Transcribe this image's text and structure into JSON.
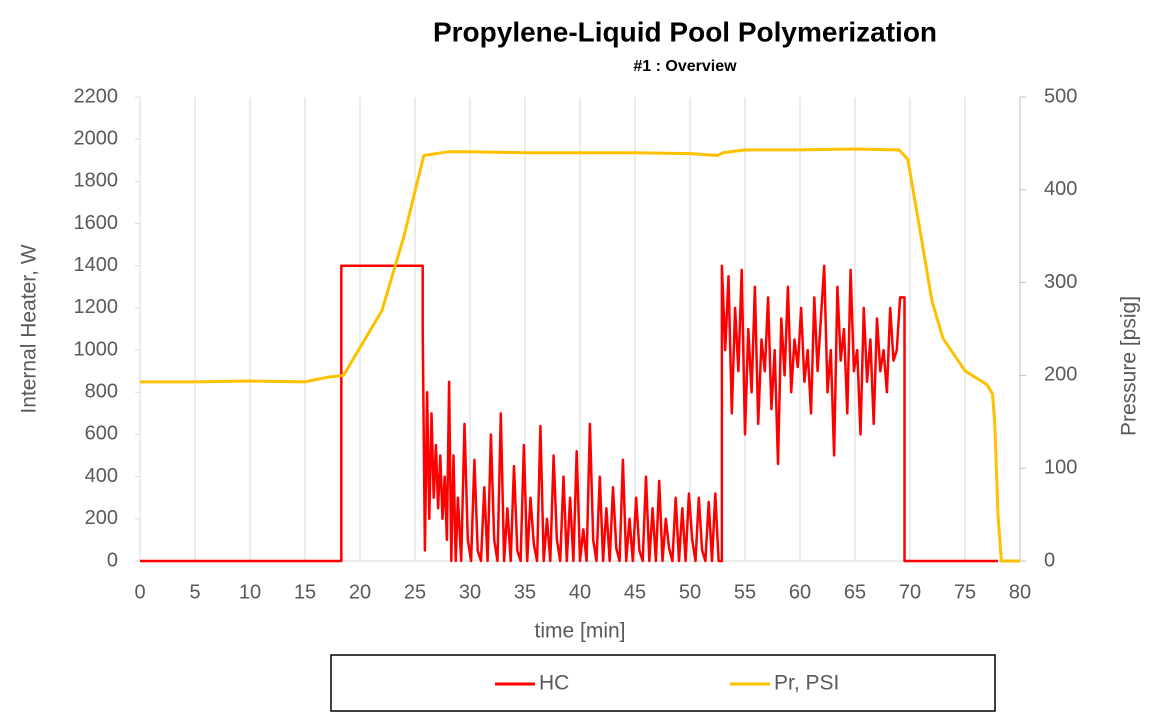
{
  "chart_data": {
    "type": "line",
    "title": "Propylene-Liquid Pool Polymerization",
    "subtitle": "#1 :  Overview",
    "x_label": "time [min]",
    "y_label": "Internal Heater, W",
    "y2_label": "Pressure [psig]",
    "xlim": [
      0,
      80
    ],
    "xticks": [
      0,
      5,
      10,
      15,
      20,
      25,
      30,
      35,
      40,
      45,
      50,
      55,
      60,
      65,
      70,
      75,
      80
    ],
    "ylim": [
      0,
      2200
    ],
    "yticks": [
      0,
      200,
      400,
      600,
      800,
      1000,
      1200,
      1400,
      1600,
      1800,
      2000,
      2200
    ],
    "y2lim": [
      0,
      500
    ],
    "y2ticks": [
      0,
      100,
      200,
      300,
      400,
      500
    ],
    "grid": "x",
    "legend": "bottom",
    "series": [
      {
        "name": "HC",
        "color": "#ff0000",
        "x": [
          0,
          18.3,
          18.3,
          25.7,
          25.7,
          25.9,
          26.1,
          26.3,
          26.5,
          26.7,
          26.9,
          27.1,
          27.3,
          27.5,
          27.7,
          27.9,
          28.1,
          28.3,
          28.5,
          28.7,
          28.9,
          29.2,
          29.5,
          29.8,
          30.1,
          30.4,
          30.7,
          31,
          31.3,
          31.6,
          31.9,
          32.2,
          32.5,
          32.8,
          33.1,
          33.4,
          33.7,
          34,
          34.3,
          34.6,
          34.9,
          35.2,
          35.5,
          35.8,
          36.1,
          36.4,
          36.7,
          37,
          37.3,
          37.6,
          37.9,
          38.2,
          38.5,
          38.8,
          39.1,
          39.4,
          39.7,
          40,
          40.3,
          40.6,
          40.9,
          41.2,
          41.5,
          41.8,
          42.1,
          42.4,
          42.7,
          43,
          43.3,
          43.6,
          43.9,
          44.2,
          44.5,
          44.8,
          45.1,
          45.4,
          45.7,
          46,
          46.3,
          46.6,
          46.9,
          47.2,
          47.5,
          47.8,
          48.1,
          48.4,
          48.7,
          49,
          49.3,
          49.6,
          49.9,
          50.2,
          50.5,
          50.8,
          51.1,
          51.4,
          51.7,
          52,
          52.3,
          52.6,
          52.9,
          52.9,
          53.2,
          53.5,
          53.8,
          54.1,
          54.4,
          54.7,
          55,
          55.3,
          55.6,
          55.9,
          56.2,
          56.5,
          56.8,
          57.1,
          57.4,
          57.7,
          58,
          58.3,
          58.6,
          58.9,
          59.2,
          59.5,
          59.8,
          60.1,
          60.4,
          60.7,
          61,
          61.3,
          61.6,
          61.9,
          62.2,
          62.5,
          62.8,
          63.1,
          63.4,
          63.7,
          64,
          64.3,
          64.6,
          64.9,
          65.2,
          65.5,
          65.8,
          66.1,
          66.4,
          66.7,
          67,
          67.3,
          67.6,
          67.9,
          68.2,
          68.5,
          68.8,
          69.1,
          69.5,
          69.5,
          78
        ],
        "values": [
          0,
          0,
          1400,
          1400,
          1100,
          50,
          800,
          200,
          700,
          300,
          550,
          250,
          500,
          200,
          400,
          100,
          850,
          0,
          500,
          0,
          300,
          0,
          650,
          100,
          0,
          480,
          50,
          0,
          350,
          0,
          600,
          100,
          0,
          700,
          0,
          250,
          0,
          450,
          50,
          0,
          550,
          0,
          300,
          80,
          0,
          640,
          0,
          200,
          0,
          500,
          100,
          0,
          400,
          0,
          300,
          0,
          520,
          0,
          150,
          0,
          650,
          100,
          0,
          400,
          0,
          250,
          0,
          350,
          60,
          0,
          480,
          0,
          200,
          0,
          300,
          50,
          0,
          400,
          0,
          250,
          0,
          380,
          0,
          200,
          60,
          0,
          300,
          0,
          250,
          0,
          320,
          100,
          0,
          300,
          50,
          0,
          280,
          0,
          320,
          0,
          0,
          1400,
          1000,
          1350,
          700,
          1200,
          900,
          1380,
          600,
          1100,
          800,
          1300,
          650,
          1050,
          900,
          1250,
          720,
          1000,
          460,
          1150,
          880,
          1300,
          800,
          1050,
          920,
          1200,
          850,
          1000,
          700,
          1250,
          900,
          1150,
          1400,
          800,
          1000,
          500,
          1300,
          950,
          1100,
          700,
          1380,
          900,
          1000,
          600,
          1200,
          850,
          1050,
          650,
          1150,
          900,
          1000,
          800,
          1200,
          950,
          1000,
          1250,
          1250,
          0,
          0
        ]
      },
      {
        "name": "Pr, PSI",
        "color": "#ffc000",
        "axis": "y2",
        "x": [
          0,
          5,
          10,
          15,
          17,
          18.5,
          20,
          22,
          24,
          25.8,
          28,
          30,
          35,
          40,
          45,
          50,
          52.5,
          53,
          55,
          60,
          65,
          69,
          69.8,
          71,
          72,
          73,
          75,
          77,
          77.5,
          77.7,
          78,
          78.3,
          80
        ],
        "values": [
          193,
          193,
          194,
          193,
          198,
          200,
          230,
          270,
          350,
          437,
          441,
          441,
          440,
          440,
          440,
          439,
          437,
          440,
          443,
          443,
          444,
          443,
          433,
          350,
          280,
          240,
          205,
          190,
          180,
          150,
          50,
          0,
          0
        ]
      }
    ]
  }
}
